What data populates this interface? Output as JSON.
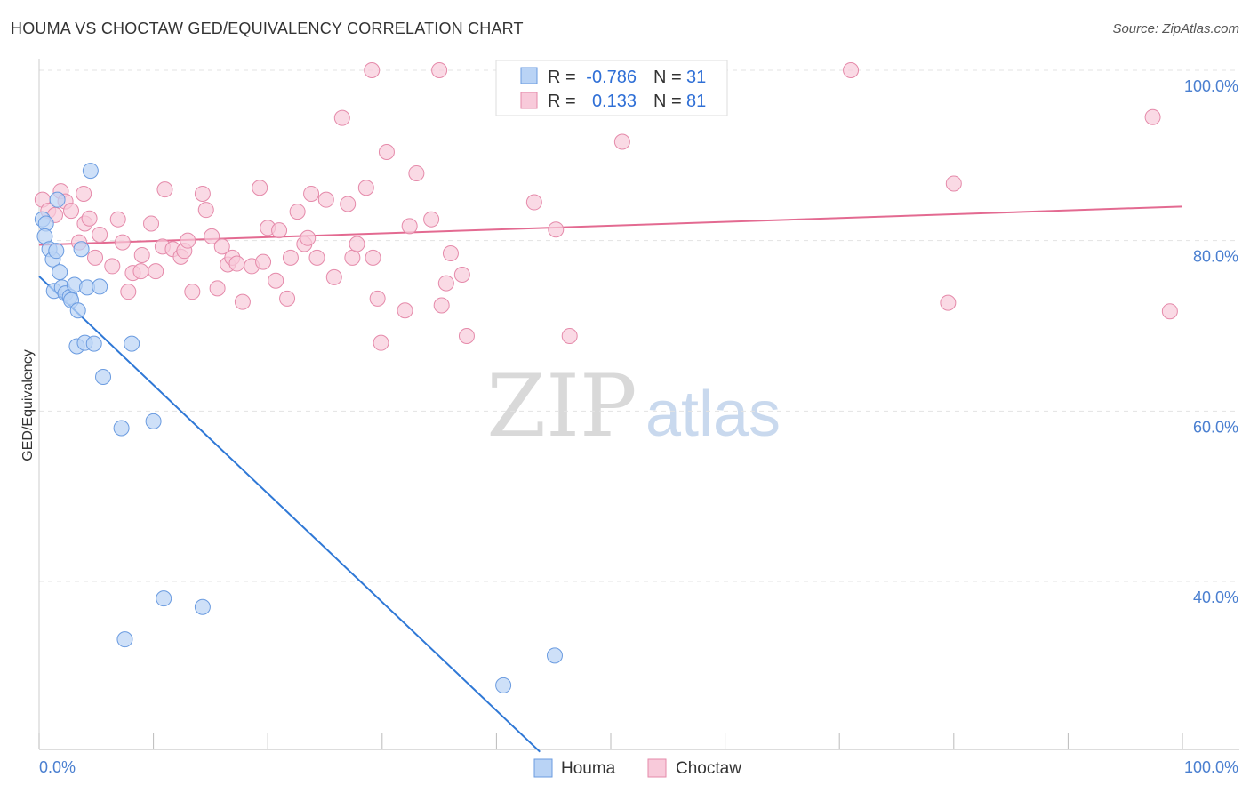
{
  "header": {
    "title": "HOUMA VS CHOCTAW GED/EQUIVALENCY CORRELATION CHART",
    "source": "Source: ZipAtlas.com"
  },
  "watermark": {
    "zip": "ZIP",
    "atlas": "atlas"
  },
  "stats_legend": {
    "rows": [
      {
        "r_label": "R =",
        "r_value": "-0.786",
        "n_label": "N =",
        "n_value": "31"
      },
      {
        "r_label": "R =",
        "r_value": "0.133",
        "n_label": "N =",
        "n_value": "81"
      }
    ]
  },
  "bottom_legend": {
    "items": [
      "Houma",
      "Choctaw"
    ]
  },
  "colors": {
    "houma_fill": "#b9d3f5",
    "houma_stroke": "#6a9be0",
    "houma_line": "#2f78d6",
    "choctaw_fill": "#f8cada",
    "choctaw_stroke": "#e58aaa",
    "choctaw_line": "#e36a91",
    "tick_label": "#4a7fd0",
    "grid": "#e3e3e3"
  },
  "chart_data": {
    "type": "scatter",
    "title": "HOUMA VS CHOCTAW GED/EQUIVALENCY CORRELATION CHART",
    "xlabel": "",
    "ylabel": "GED/Equivalency",
    "xlim": [
      0,
      100
    ],
    "ylim": [
      20,
      102
    ],
    "x_tick_labels": [
      "0.0%",
      "100.0%"
    ],
    "y_ticks": [
      40,
      60,
      80,
      100
    ],
    "y_tick_labels": [
      "40.0%",
      "60.0%",
      "80.0%",
      "100.0%"
    ],
    "grid": true,
    "legend": "top-center",
    "series": [
      {
        "name": "Houma",
        "r": -0.786,
        "n": 31,
        "trend": {
          "x0": 0.0,
          "y0": 75.8,
          "x1": 43.8,
          "y1": 20.0
        },
        "points": [
          [
            0.3,
            82.5
          ],
          [
            0.6,
            82.0
          ],
          [
            0.5,
            80.5
          ],
          [
            0.9,
            79.0
          ],
          [
            1.2,
            77.8
          ],
          [
            1.5,
            78.8
          ],
          [
            1.8,
            76.3
          ],
          [
            1.3,
            74.1
          ],
          [
            2.0,
            74.5
          ],
          [
            2.3,
            73.8
          ],
          [
            2.7,
            73.4
          ],
          [
            2.8,
            73.0
          ],
          [
            3.1,
            74.8
          ],
          [
            3.4,
            71.8
          ],
          [
            4.2,
            74.5
          ],
          [
            5.3,
            74.6
          ],
          [
            3.7,
            79.0
          ],
          [
            1.6,
            84.8
          ],
          [
            4.5,
            88.2
          ],
          [
            3.3,
            67.6
          ],
          [
            4.0,
            68.0
          ],
          [
            4.8,
            67.9
          ],
          [
            5.6,
            64.0
          ],
          [
            8.1,
            67.9
          ],
          [
            7.2,
            58.0
          ],
          [
            10.0,
            58.8
          ],
          [
            10.9,
            38.0
          ],
          [
            14.3,
            37.0
          ],
          [
            7.5,
            33.2
          ],
          [
            45.1,
            31.3
          ],
          [
            40.6,
            27.8
          ]
        ]
      },
      {
        "name": "Choctaw",
        "r": 0.133,
        "n": 81,
        "trend": {
          "x0": 0.0,
          "y0": 79.5,
          "x1": 100.0,
          "y1": 84.0
        },
        "points": [
          [
            0.3,
            84.8
          ],
          [
            0.8,
            83.5
          ],
          [
            1.4,
            83.0
          ],
          [
            1.9,
            85.8
          ],
          [
            2.3,
            84.6
          ],
          [
            2.8,
            83.5
          ],
          [
            3.5,
            79.8
          ],
          [
            4.0,
            82.0
          ],
          [
            4.4,
            82.6
          ],
          [
            4.9,
            78.0
          ],
          [
            5.3,
            80.7
          ],
          [
            6.4,
            77.0
          ],
          [
            6.9,
            82.5
          ],
          [
            7.3,
            79.8
          ],
          [
            7.8,
            74.0
          ],
          [
            8.2,
            76.2
          ],
          [
            9.0,
            78.3
          ],
          [
            9.8,
            82.0
          ],
          [
            10.2,
            76.4
          ],
          [
            10.8,
            79.3
          ],
          [
            11.0,
            86.0
          ],
          [
            11.7,
            79.0
          ],
          [
            12.4,
            78.1
          ],
          [
            12.7,
            78.8
          ],
          [
            13.0,
            80.0
          ],
          [
            13.4,
            74.0
          ],
          [
            14.3,
            85.5
          ],
          [
            14.6,
            83.6
          ],
          [
            15.1,
            80.5
          ],
          [
            15.6,
            74.4
          ],
          [
            16.0,
            79.3
          ],
          [
            16.5,
            77.2
          ],
          [
            16.9,
            78.0
          ],
          [
            17.3,
            77.3
          ],
          [
            17.8,
            72.8
          ],
          [
            18.6,
            77.0
          ],
          [
            19.3,
            86.2
          ],
          [
            19.6,
            77.5
          ],
          [
            20.0,
            81.5
          ],
          [
            20.7,
            75.3
          ],
          [
            21.0,
            81.2
          ],
          [
            21.7,
            73.2
          ],
          [
            22.0,
            78.0
          ],
          [
            22.6,
            83.4
          ],
          [
            23.2,
            79.6
          ],
          [
            23.5,
            80.3
          ],
          [
            23.8,
            85.5
          ],
          [
            24.3,
            78.0
          ],
          [
            25.1,
            84.8
          ],
          [
            25.8,
            75.7
          ],
          [
            26.5,
            94.4
          ],
          [
            27.0,
            84.3
          ],
          [
            27.4,
            78.0
          ],
          [
            27.8,
            79.6
          ],
          [
            28.6,
            86.2
          ],
          [
            29.2,
            78.0
          ],
          [
            29.6,
            73.2
          ],
          [
            29.9,
            68.0
          ],
          [
            29.1,
            100.0
          ],
          [
            30.4,
            90.4
          ],
          [
            32.0,
            71.8
          ],
          [
            32.4,
            81.7
          ],
          [
            33.0,
            87.9
          ],
          [
            34.3,
            82.5
          ],
          [
            35.2,
            72.4
          ],
          [
            35.6,
            75.0
          ],
          [
            36.0,
            78.5
          ],
          [
            37.0,
            76.0
          ],
          [
            37.4,
            68.8
          ],
          [
            35.0,
            100.0
          ],
          [
            43.3,
            84.5
          ],
          [
            45.2,
            81.3
          ],
          [
            46.4,
            68.8
          ],
          [
            51.0,
            91.6
          ],
          [
            71.0,
            100.0
          ],
          [
            80.0,
            86.7
          ],
          [
            79.5,
            72.7
          ],
          [
            97.4,
            94.5
          ],
          [
            98.9,
            71.7
          ],
          [
            3.9,
            85.5
          ],
          [
            8.9,
            76.4
          ]
        ]
      }
    ]
  }
}
